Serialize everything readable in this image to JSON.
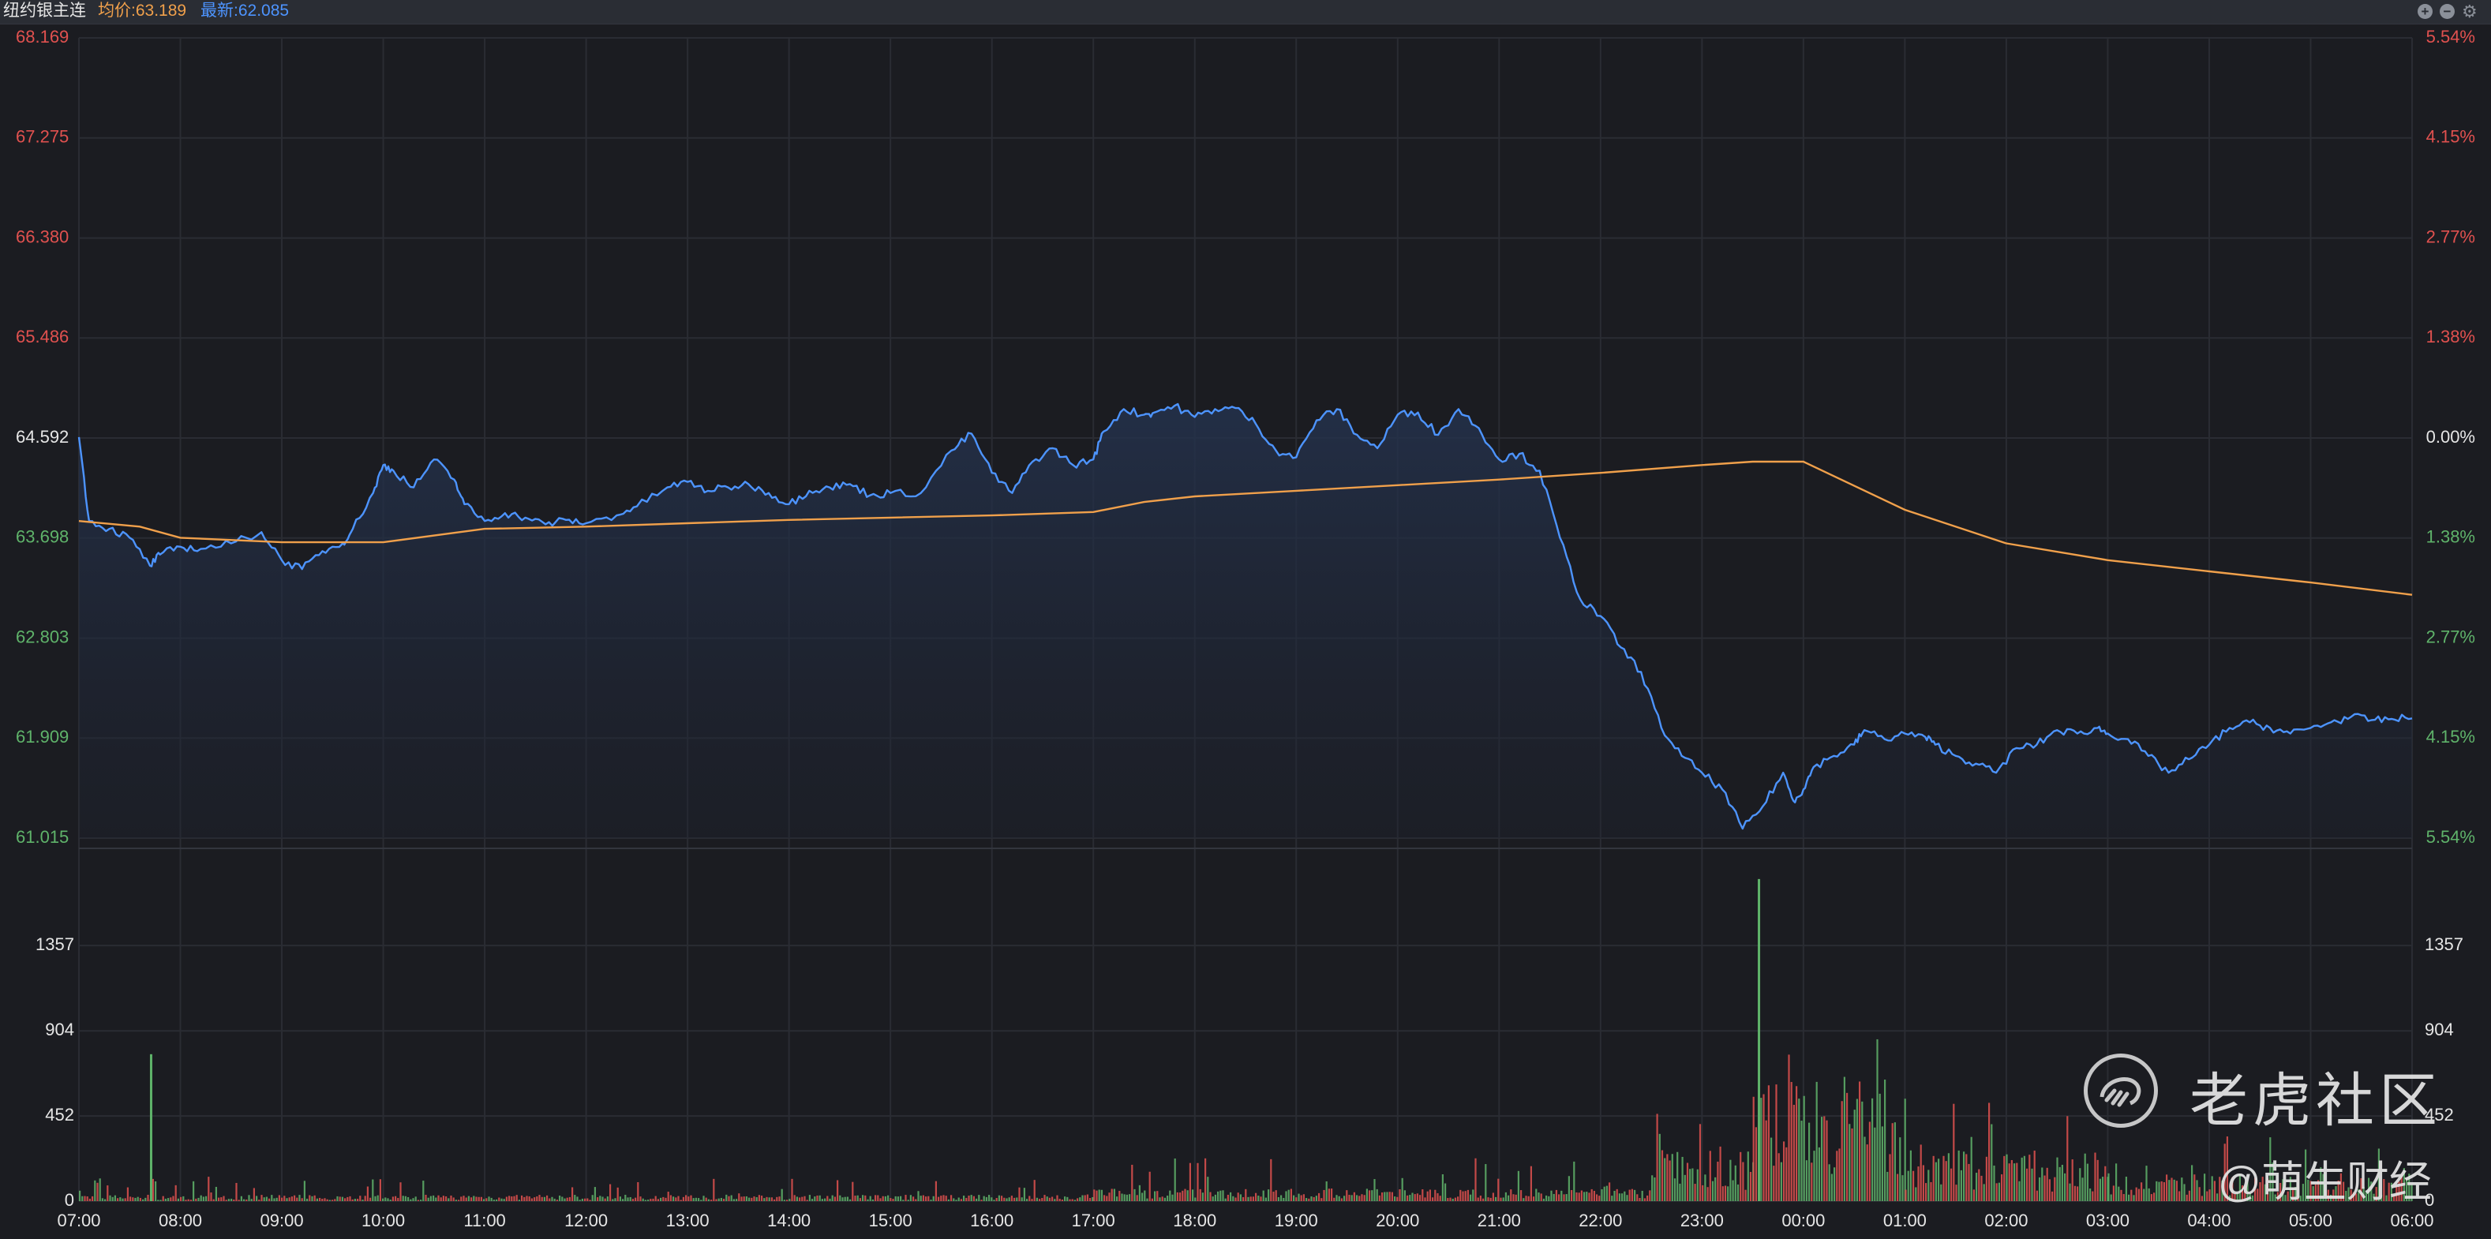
{
  "header": {
    "title": "纽约银主连",
    "avg_label": "均价:63.189",
    "last_label": "最新:62.085",
    "controls": [
      "plus-icon",
      "minus-icon",
      "gear-icon"
    ]
  },
  "colors": {
    "background": "#1b1c21",
    "price_line": "#4d94ff",
    "avg_line": "#f0a04b",
    "up": "#e0514f",
    "down": "#5fb36a",
    "grid": "#2a2c33"
  },
  "watermark": {
    "name": "老虎社区",
    "sub": "@萌生财经"
  },
  "chart_data": {
    "type": "line",
    "title": "纽约银主连",
    "price_axis": {
      "ylim": [
        61.015,
        68.169
      ],
      "ticks": [
        68.169,
        67.275,
        66.38,
        65.486,
        64.592,
        63.698,
        62.803,
        61.909,
        61.015
      ],
      "tick_labels": [
        "68.169",
        "67.275",
        "66.380",
        "65.486",
        "64.592",
        "63.698",
        "62.803",
        "61.909",
        "61.015"
      ],
      "pct_labels": [
        "5.54%",
        "4.15%",
        "2.77%",
        "1.38%",
        "0.00%",
        "1.38%",
        "2.77%",
        "4.15%",
        "5.54%"
      ],
      "prev_close": 64.592
    },
    "x_labels": [
      "07:00",
      "08:00",
      "09:00",
      "10:00",
      "11:00",
      "12:00",
      "13:00",
      "14:00",
      "15:00",
      "16:00",
      "17:00",
      "18:00",
      "19:00",
      "20:00",
      "21:00",
      "22:00",
      "23:00",
      "00:00",
      "01:00",
      "02:00",
      "03:00",
      "04:00",
      "05:00",
      "06:00"
    ],
    "series": [
      {
        "key": "price",
        "x_hours": [
          0,
          0.1,
          0.3,
          0.5,
          0.7,
          0.8,
          1.0,
          1.2,
          1.5,
          1.8,
          2.0,
          2.2,
          2.4,
          2.6,
          2.7,
          2.9,
          3.0,
          3.1,
          3.3,
          3.5,
          3.7,
          3.8,
          4.0,
          4.2,
          4.4,
          4.6,
          4.8,
          5.0,
          5.3,
          5.5,
          5.8,
          6.0,
          6.2,
          6.4,
          6.6,
          6.8,
          7.0,
          7.2,
          7.4,
          7.6,
          7.8,
          8.0,
          8.3,
          8.6,
          8.8,
          9.0,
          9.2,
          9.4,
          9.6,
          9.8,
          10.0,
          10.1,
          10.3,
          10.5,
          10.6,
          10.8,
          11.0,
          11.2,
          11.4,
          11.6,
          11.8,
          12.0,
          12.2,
          12.4,
          12.6,
          12.8,
          13.0,
          13.2,
          13.4,
          13.6,
          13.8,
          14.0,
          14.2,
          14.4,
          14.6,
          14.8,
          15.0,
          15.2,
          15.4,
          15.6,
          15.8,
          16.0,
          16.2,
          16.4,
          16.6,
          16.8,
          16.9,
          17.0,
          17.1,
          17.3,
          17.5,
          17.6,
          17.8,
          18.0,
          18.2,
          18.3,
          18.5,
          18.7,
          18.9,
          19.1,
          19.3,
          19.5,
          19.7,
          19.9,
          20.0,
          20.2,
          20.4,
          20.6,
          20.8,
          21.0,
          21.2,
          21.4,
          21.6,
          21.8,
          22.0,
          22.2,
          22.4,
          22.6,
          22.8,
          23.0
        ],
        "values": [
          64.6,
          63.85,
          63.78,
          63.7,
          63.45,
          63.55,
          63.62,
          63.6,
          63.65,
          63.75,
          63.5,
          63.42,
          63.58,
          63.65,
          63.78,
          64.1,
          64.35,
          64.3,
          64.15,
          64.4,
          64.22,
          64.0,
          63.85,
          63.92,
          63.88,
          63.82,
          63.86,
          63.83,
          63.9,
          63.98,
          64.15,
          64.2,
          64.12,
          64.15,
          64.18,
          64.1,
          64.0,
          64.12,
          64.15,
          64.18,
          64.08,
          64.1,
          64.1,
          64.48,
          64.63,
          64.28,
          64.1,
          64.38,
          64.5,
          64.35,
          64.4,
          64.65,
          64.85,
          64.8,
          64.82,
          64.88,
          64.78,
          64.85,
          64.86,
          64.72,
          64.48,
          64.42,
          64.75,
          64.85,
          64.62,
          64.5,
          64.8,
          64.82,
          64.62,
          64.85,
          64.68,
          64.4,
          64.45,
          64.3,
          63.7,
          63.15,
          63.0,
          62.72,
          62.5,
          62.0,
          61.75,
          61.6,
          61.45,
          61.1,
          61.3,
          61.6,
          61.35,
          61.45,
          61.65,
          61.75,
          61.85,
          61.98,
          61.9,
          61.95,
          61.92,
          61.85,
          61.75,
          61.68,
          61.6,
          61.82,
          61.85,
          61.98,
          61.95,
          62.0,
          61.95,
          61.9,
          61.75,
          61.6,
          61.72,
          61.85,
          62.0,
          62.05,
          62.0,
          61.95,
          62.0,
          62.05,
          62.1,
          62.07,
          62.08,
          62.085
        ]
      },
      {
        "key": "average",
        "x_hours": [
          0,
          0.6,
          1.0,
          2.0,
          3.0,
          4.0,
          5.0,
          6.0,
          7.0,
          8.0,
          9.0,
          10.0,
          10.5,
          11.0,
          12.0,
          13.0,
          14.0,
          15.0,
          16.0,
          16.5,
          17.0,
          18.0,
          19.0,
          20.0,
          21.0,
          22.0,
          23.0
        ],
        "values": [
          63.85,
          63.8,
          63.7,
          63.66,
          63.66,
          63.78,
          63.8,
          63.83,
          63.86,
          63.88,
          63.9,
          63.93,
          64.02,
          64.07,
          64.12,
          64.17,
          64.22,
          64.28,
          64.35,
          64.38,
          64.38,
          63.95,
          63.65,
          63.5,
          63.4,
          63.3,
          63.19
        ]
      }
    ],
    "volume": {
      "ylim": [
        0,
        1810
      ],
      "ticks": [
        0,
        452,
        904,
        1357
      ],
      "tick_labels": [
        "0",
        "452",
        "904",
        "1357"
      ],
      "segments": [
        {
          "start_hour": 0,
          "end_hour": 10.0,
          "base": 25,
          "spike": 130,
          "peak_hour": 0.7,
          "peak_value": 780
        },
        {
          "start_hour": 10.0,
          "end_hour": 15.5,
          "base": 50,
          "spike": 230
        },
        {
          "start_hour": 15.5,
          "end_hour": 16.5,
          "base": 220,
          "spike": 700
        },
        {
          "start_hour": 16.5,
          "end_hour": 18.0,
          "base": 480,
          "spike": 1300,
          "peak_hour": 16.55,
          "peak_value": 1710
        },
        {
          "start_hour": 18.0,
          "end_hour": 20.0,
          "base": 200,
          "spike": 650
        },
        {
          "start_hour": 20.0,
          "end_hour": 23.0,
          "base": 110,
          "spike": 350
        }
      ]
    }
  }
}
